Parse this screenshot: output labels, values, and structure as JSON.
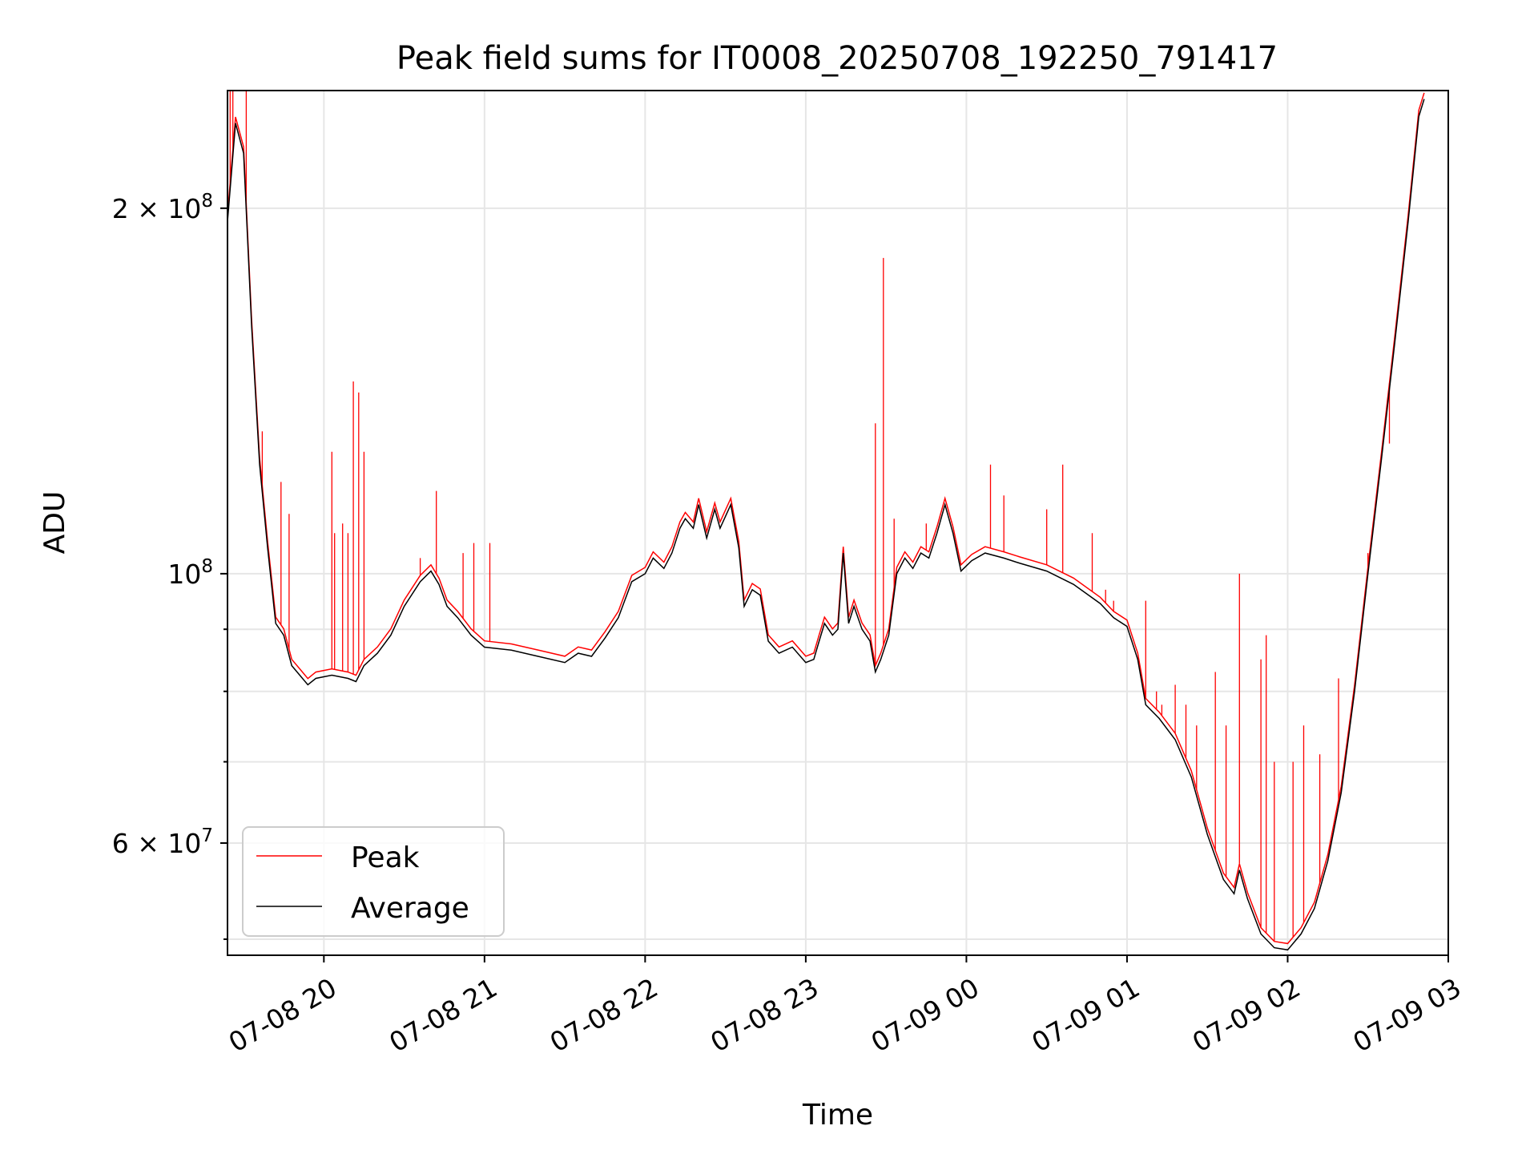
{
  "chart_data": {
    "type": "line",
    "title": "Peak field sums for IT0008_20250708_192250_791417",
    "xlabel": "Time",
    "ylabel": "ADU",
    "y_scale": "log",
    "ylim": [
      48500000,
      250000000
    ],
    "xlim": [
      "2025-07-08 19:24",
      "2025-07-09 03:00"
    ],
    "grid": true,
    "legend_position": "lower-left",
    "x_ticks": [
      {
        "t": "2025-07-08 20:00",
        "label": "07-08 20"
      },
      {
        "t": "2025-07-08 21:00",
        "label": "07-08 21"
      },
      {
        "t": "2025-07-08 22:00",
        "label": "07-08 22"
      },
      {
        "t": "2025-07-08 23:00",
        "label": "07-08 23"
      },
      {
        "t": "2025-07-09 00:00",
        "label": "07-09 00"
      },
      {
        "t": "2025-07-09 01:00",
        "label": "07-09 01"
      },
      {
        "t": "2025-07-09 02:00",
        "label": "07-09 02"
      },
      {
        "t": "2025-07-09 03:00",
        "label": "07-09 03"
      }
    ],
    "y_ticks_major": [
      {
        "value": 60000000,
        "label": "6 × 10",
        "exp": "7"
      },
      {
        "value": 100000000,
        "label": "10",
        "exp": "8"
      },
      {
        "value": 200000000,
        "label": "2 × 10",
        "exp": "8"
      }
    ],
    "y_ticks_minor": [
      50000000,
      70000000,
      80000000,
      90000000
    ],
    "series": [
      {
        "name": "Average",
        "color": "#000000",
        "points": [
          [
            "2025-07-08 19:24",
            195000000
          ],
          [
            "2025-07-08 19:27",
            235000000
          ],
          [
            "2025-07-08 19:30",
            222000000
          ],
          [
            "2025-07-08 19:33",
            160000000
          ],
          [
            "2025-07-08 19:36",
            123000000
          ],
          [
            "2025-07-08 19:39",
            105000000
          ],
          [
            "2025-07-08 19:42",
            91000000
          ],
          [
            "2025-07-08 19:45",
            89000000
          ],
          [
            "2025-07-08 19:48",
            84000000
          ],
          [
            "2025-07-08 19:51",
            82500000
          ],
          [
            "2025-07-08 19:54",
            81000000
          ],
          [
            "2025-07-08 19:57",
            82000000
          ],
          [
            "2025-07-08 20:03",
            82500000
          ],
          [
            "2025-07-08 20:09",
            82000000
          ],
          [
            "2025-07-08 20:12",
            81500000
          ],
          [
            "2025-07-08 20:15",
            84000000
          ],
          [
            "2025-07-08 20:20",
            86000000
          ],
          [
            "2025-07-08 20:25",
            89000000
          ],
          [
            "2025-07-08 20:30",
            94000000
          ],
          [
            "2025-07-08 20:36",
            98500000
          ],
          [
            "2025-07-08 20:40",
            100500000
          ],
          [
            "2025-07-08 20:43",
            98000000
          ],
          [
            "2025-07-08 20:46",
            94000000
          ],
          [
            "2025-07-08 20:50",
            92000000
          ],
          [
            "2025-07-08 20:55",
            89000000
          ],
          [
            "2025-07-08 21:00",
            87000000
          ],
          [
            "2025-07-08 21:10",
            86500000
          ],
          [
            "2025-07-08 21:20",
            85500000
          ],
          [
            "2025-07-08 21:30",
            84500000
          ],
          [
            "2025-07-08 21:35",
            86000000
          ],
          [
            "2025-07-08 21:40",
            85500000
          ],
          [
            "2025-07-08 21:45",
            88500000
          ],
          [
            "2025-07-08 21:50",
            92000000
          ],
          [
            "2025-07-08 21:55",
            98500000
          ],
          [
            "2025-07-08 22:00",
            100000000
          ],
          [
            "2025-07-08 22:03",
            103000000
          ],
          [
            "2025-07-08 22:07",
            101000000
          ],
          [
            "2025-07-08 22:10",
            104000000
          ],
          [
            "2025-07-08 22:13",
            109000000
          ],
          [
            "2025-07-08 22:15",
            111000000
          ],
          [
            "2025-07-08 22:18",
            109000000
          ],
          [
            "2025-07-08 22:20",
            114000000
          ],
          [
            "2025-07-08 22:23",
            107000000
          ],
          [
            "2025-07-08 22:26",
            113000000
          ],
          [
            "2025-07-08 22:28",
            109000000
          ],
          [
            "2025-07-08 22:32",
            114000000
          ],
          [
            "2025-07-08 22:35",
            105000000
          ],
          [
            "2025-07-08 22:37",
            94000000
          ],
          [
            "2025-07-08 22:40",
            97000000
          ],
          [
            "2025-07-08 22:43",
            96000000
          ],
          [
            "2025-07-08 22:46",
            88000000
          ],
          [
            "2025-07-08 22:50",
            86000000
          ],
          [
            "2025-07-08 22:55",
            87000000
          ],
          [
            "2025-07-08 23:00",
            84500000
          ],
          [
            "2025-07-08 23:03",
            85000000
          ],
          [
            "2025-07-08 23:05",
            88000000
          ],
          [
            "2025-07-08 23:07",
            91000000
          ],
          [
            "2025-07-08 23:10",
            89000000
          ],
          [
            "2025-07-08 23:12",
            90000000
          ],
          [
            "2025-07-08 23:14",
            104000000
          ],
          [
            "2025-07-08 23:16",
            91000000
          ],
          [
            "2025-07-08 23:18",
            94000000
          ],
          [
            "2025-07-08 23:21",
            90000000
          ],
          [
            "2025-07-08 23:24",
            88000000
          ],
          [
            "2025-07-08 23:26",
            83000000
          ],
          [
            "2025-07-08 23:28",
            85000000
          ],
          [
            "2025-07-08 23:31",
            89000000
          ],
          [
            "2025-07-08 23:34",
            100000000
          ],
          [
            "2025-07-08 23:37",
            103000000
          ],
          [
            "2025-07-08 23:40",
            101000000
          ],
          [
            "2025-07-08 23:43",
            104000000
          ],
          [
            "2025-07-08 23:46",
            103000000
          ],
          [
            "2025-07-08 23:49",
            108000000
          ],
          [
            "2025-07-08 23:52",
            114000000
          ],
          [
            "2025-07-08 23:55",
            108000000
          ],
          [
            "2025-07-08 23:58",
            100500000
          ],
          [
            "2025-07-09 00:02",
            102500000
          ],
          [
            "2025-07-09 00:07",
            104000000
          ],
          [
            "2025-07-09 00:14",
            103000000
          ],
          [
            "2025-07-09 00:20",
            102000000
          ],
          [
            "2025-07-09 00:30",
            100500000
          ],
          [
            "2025-07-09 00:40",
            98000000
          ],
          [
            "2025-07-09 00:50",
            94500000
          ],
          [
            "2025-07-09 00:55",
            92000000
          ],
          [
            "2025-07-09 01:00",
            90500000
          ],
          [
            "2025-07-09 01:04",
            85000000
          ],
          [
            "2025-07-09 01:07",
            78000000
          ],
          [
            "2025-07-09 01:12",
            76000000
          ],
          [
            "2025-07-09 01:18",
            73000000
          ],
          [
            "2025-07-09 01:24",
            68000000
          ],
          [
            "2025-07-09 01:30",
            61000000
          ],
          [
            "2025-07-09 01:36",
            56000000
          ],
          [
            "2025-07-09 01:40",
            54500000
          ],
          [
            "2025-07-09 01:42",
            57000000
          ],
          [
            "2025-07-09 01:45",
            54000000
          ],
          [
            "2025-07-09 01:50",
            50500000
          ],
          [
            "2025-07-09 01:55",
            49200000
          ],
          [
            "2025-07-09 02:00",
            49000000
          ],
          [
            "2025-07-09 02:05",
            50500000
          ],
          [
            "2025-07-09 02:10",
            53000000
          ],
          [
            "2025-07-09 02:15",
            58000000
          ],
          [
            "2025-07-09 02:20",
            66000000
          ],
          [
            "2025-07-09 02:25",
            80000000
          ],
          [
            "2025-07-09 02:30",
            100000000
          ],
          [
            "2025-07-09 02:35",
            124000000
          ],
          [
            "2025-07-09 02:40",
            155000000
          ],
          [
            "2025-07-09 02:45",
            195000000
          ],
          [
            "2025-07-09 02:49",
            238000000
          ],
          [
            "2025-07-09 02:51",
            246000000
          ]
        ]
      },
      {
        "name": "Peak",
        "color": "#ff0000",
        "offset_ratio": 1.012,
        "spikes": [
          [
            "2025-07-08 19:25",
            250000000
          ],
          [
            "2025-07-08 19:26",
            250000000
          ],
          [
            "2025-07-08 19:31",
            250000000
          ],
          [
            "2025-07-08 19:37",
            131000000
          ],
          [
            "2025-07-08 19:44",
            119000000
          ],
          [
            "2025-07-08 19:47",
            112000000
          ],
          [
            "2025-07-08 20:03",
            126000000
          ],
          [
            "2025-07-08 20:04",
            108000000
          ],
          [
            "2025-07-08 20:07",
            110000000
          ],
          [
            "2025-07-08 20:09",
            108000000
          ],
          [
            "2025-07-08 20:11",
            144000000
          ],
          [
            "2025-07-08 20:13",
            141000000
          ],
          [
            "2025-07-08 20:15",
            126000000
          ],
          [
            "2025-07-08 20:36",
            103000000
          ],
          [
            "2025-07-08 20:42",
            117000000
          ],
          [
            "2025-07-08 20:52",
            104000000
          ],
          [
            "2025-07-08 20:56",
            106000000
          ],
          [
            "2025-07-08 21:02",
            106000000
          ],
          [
            "2025-07-08 23:26",
            133000000
          ],
          [
            "2025-07-08 23:29",
            182000000
          ],
          [
            "2025-07-08 23:33",
            111000000
          ],
          [
            "2025-07-08 23:45",
            110000000
          ],
          [
            "2025-07-09 00:09",
            123000000
          ],
          [
            "2025-07-09 00:14",
            116000000
          ],
          [
            "2025-07-09 00:30",
            113000000
          ],
          [
            "2025-07-09 00:36",
            123000000
          ],
          [
            "2025-07-09 00:47",
            108000000
          ],
          [
            "2025-07-09 00:52",
            97000000
          ],
          [
            "2025-07-09 00:55",
            95000000
          ],
          [
            "2025-07-09 01:07",
            95000000
          ],
          [
            "2025-07-09 01:11",
            80000000
          ],
          [
            "2025-07-09 01:13",
            78000000
          ],
          [
            "2025-07-09 01:18",
            81000000
          ],
          [
            "2025-07-09 01:22",
            78000000
          ],
          [
            "2025-07-09 01:26",
            75000000
          ],
          [
            "2025-07-09 01:33",
            83000000
          ],
          [
            "2025-07-09 01:37",
            75000000
          ],
          [
            "2025-07-09 01:42",
            100000000
          ],
          [
            "2025-07-09 01:50",
            85000000
          ],
          [
            "2025-07-09 01:52",
            89000000
          ],
          [
            "2025-07-09 01:55",
            70000000
          ],
          [
            "2025-07-09 02:02",
            70000000
          ],
          [
            "2025-07-09 02:06",
            75000000
          ],
          [
            "2025-07-09 02:12",
            71000000
          ],
          [
            "2025-07-09 02:19",
            82000000
          ],
          [
            "2025-07-09 02:30",
            104000000
          ],
          [
            "2025-07-09 02:38",
            128000000
          ]
        ]
      }
    ]
  }
}
